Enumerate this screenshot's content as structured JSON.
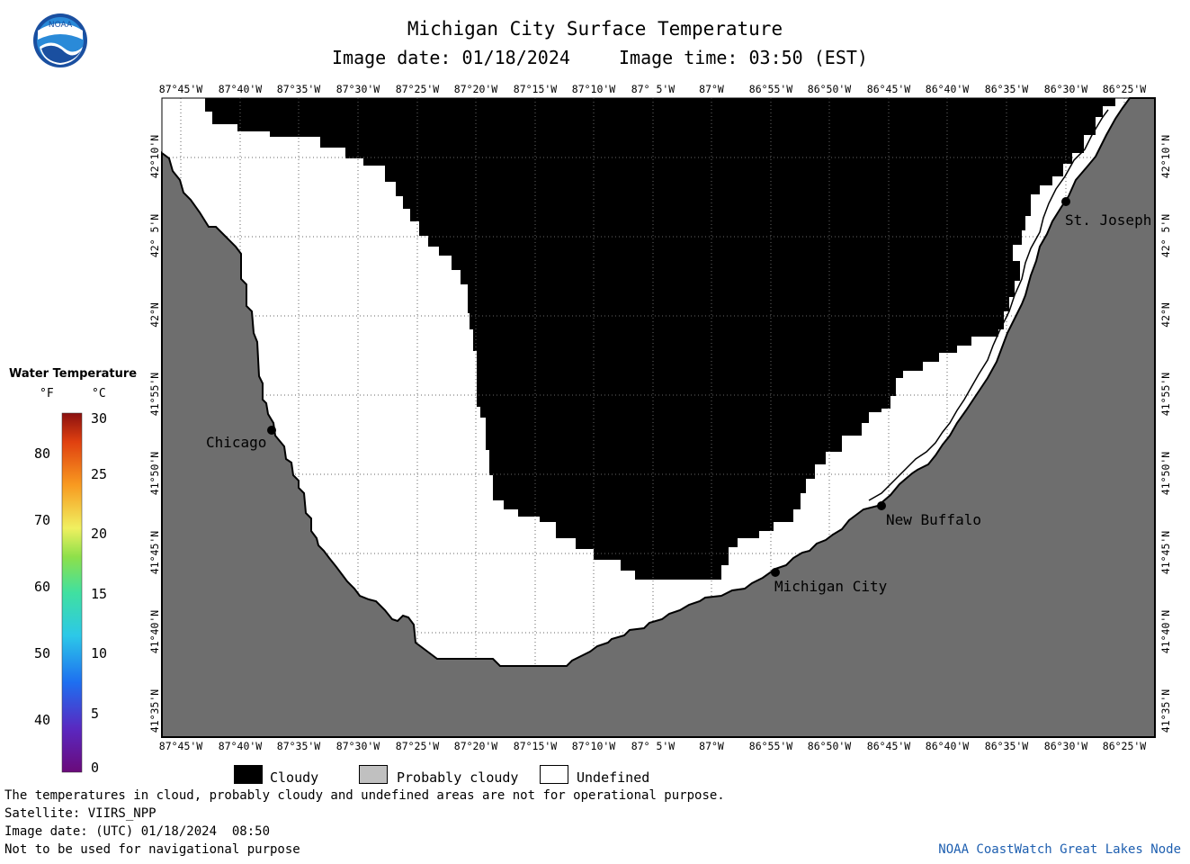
{
  "header": {
    "logo_text": "NOAA",
    "title": "Michigan City Surface Temperature",
    "image_date_label": "Image date: 01/18/2024",
    "image_time_label": "Image time: 03:50 (EST)"
  },
  "map": {
    "lon_labels": [
      "87°45'W",
      "87°40'W",
      "87°35'W",
      "87°30'W",
      "87°25'W",
      "87°20'W",
      "87°15'W",
      "87°10'W",
      "87° 5'W",
      "87°W",
      "86°55'W",
      "86°50'W",
      "86°45'W",
      "86°40'W",
      "86°35'W",
      "86°30'W",
      "86°25'W"
    ],
    "lat_labels": [
      "42°10'N",
      "42° 5'N",
      "42°N",
      "41°55'N",
      "41°50'N",
      "41°45'N",
      "41°40'N",
      "41°35'N"
    ],
    "cities": [
      {
        "name": "Chicago"
      },
      {
        "name": "Michigan City"
      },
      {
        "name": "New Buffalo"
      },
      {
        "name": "St. Joseph"
      }
    ],
    "colors": {
      "cloudy": "#000000",
      "probably_cloudy": "#c0c0c0",
      "undefined": "#ffffff",
      "land": "#6e6e6e"
    }
  },
  "colorbar": {
    "title": "Water Temperature",
    "unit_f": "°F",
    "unit_c": "°C",
    "f_ticks": [
      "80",
      "70",
      "60",
      "50",
      "40"
    ],
    "c_ticks": [
      "30",
      "25",
      "20",
      "15",
      "10",
      "5",
      "0"
    ]
  },
  "legend": {
    "cloudy": "Cloudy",
    "probably_cloudy": "Probably cloudy",
    "undefined": "Undefined"
  },
  "footer": {
    "note": "The temperatures in cloud, probably cloudy and undefined areas are not for operational purpose.",
    "satellite": "Satellite: VIIRS_NPP",
    "utc_date": "Image date: (UTC) 01/18/2024  08:50",
    "nav_warning": "Not to be used for navigational purpose",
    "credit": "NOAA CoastWatch Great Lakes Node"
  }
}
